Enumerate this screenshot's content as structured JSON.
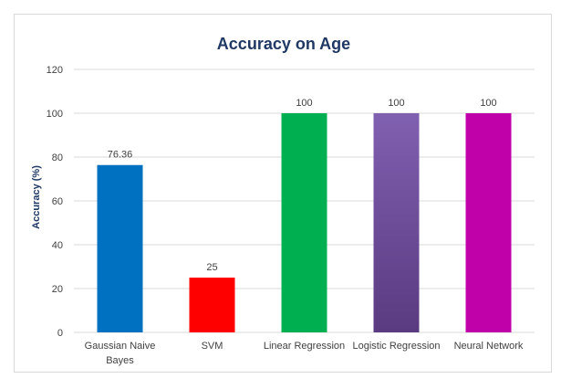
{
  "chart_data": {
    "type": "bar",
    "title": "Accuracy on Age",
    "xlabel": "",
    "ylabel": "Accuracy (%)",
    "ylim": [
      0,
      120
    ],
    "yticks": [
      0,
      20,
      40,
      60,
      80,
      100,
      120
    ],
    "grid": true,
    "categories": [
      [
        "Gaussian Naive",
        "Bayes"
      ],
      [
        "SVM"
      ],
      [
        "Linear Regression"
      ],
      [
        "Logistic Regression"
      ],
      [
        "Neural Network"
      ]
    ],
    "values": [
      76.36,
      25,
      100,
      100,
      100
    ],
    "data_labels": [
      "76.36",
      "25",
      "100",
      "100",
      "100"
    ],
    "colors": [
      "#0070c0",
      "#ff0000",
      "#00b050",
      "#7030a0",
      "#c000a8"
    ]
  }
}
